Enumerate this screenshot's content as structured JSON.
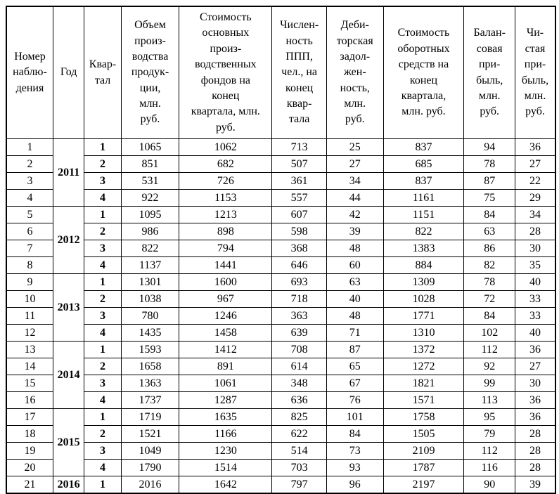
{
  "table": {
    "columns": [
      {
        "id": "obs",
        "label": "Номер\nнаблю-\nдения"
      },
      {
        "id": "year",
        "label": "Год"
      },
      {
        "id": "quarter",
        "label": "Квар-\nтал"
      },
      {
        "id": "production_volume",
        "label": "Объем\nпроиз-\nводства\nпродук-\nции,\nмлн.\nруб."
      },
      {
        "id": "fixed_assets",
        "label": "Стоимость\nосновных\nпроиз-\nводственных\nфондов на\nконец\nквартала, млн.\nруб."
      },
      {
        "id": "headcount",
        "label": "Числен-\nность\nППП,\nчел., на\nконец\nквар-\nтала"
      },
      {
        "id": "receivables",
        "label": "Деби-\nторская\nзадол-\nжен-\nность,\nмлн.\nруб."
      },
      {
        "id": "working_capital",
        "label": "Стоимость\nоборотных\nсредств на\nконец\nквартала,\nмлн. руб."
      },
      {
        "id": "book_profit",
        "label": "Балан-\nсовая\nпри-\nбыль,\nмлн.\nруб."
      },
      {
        "id": "net_profit",
        "label": "Чи-\nстая\nпри-\nбыль,\nмлн.\nруб."
      }
    ],
    "year_groups": [
      {
        "year": "2011",
        "rows": [
          {
            "obs": "1",
            "quarter": "1",
            "values": [
              "1065",
              "1062",
              "713",
              "25",
              "837",
              "94",
              "36"
            ]
          },
          {
            "obs": "2",
            "quarter": "2",
            "values": [
              "851",
              "682",
              "507",
              "27",
              "685",
              "78",
              "27"
            ]
          },
          {
            "obs": "3",
            "quarter": "3",
            "values": [
              "531",
              "726",
              "361",
              "34",
              "837",
              "87",
              "22"
            ]
          },
          {
            "obs": "4",
            "quarter": "4",
            "values": [
              "922",
              "1153",
              "557",
              "44",
              "1161",
              "75",
              "29"
            ]
          }
        ]
      },
      {
        "year": "2012",
        "rows": [
          {
            "obs": "5",
            "quarter": "1",
            "values": [
              "1095",
              "1213",
              "607",
              "42",
              "1151",
              "84",
              "34"
            ]
          },
          {
            "obs": "6",
            "quarter": "2",
            "values": [
              "986",
              "898",
              "598",
              "39",
              "822",
              "63",
              "28"
            ]
          },
          {
            "obs": "7",
            "quarter": "3",
            "values": [
              "822",
              "794",
              "368",
              "48",
              "1383",
              "86",
              "30"
            ]
          },
          {
            "obs": "8",
            "quarter": "4",
            "values": [
              "1137",
              "1441",
              "646",
              "60",
              "884",
              "82",
              "35"
            ]
          }
        ]
      },
      {
        "year": "2013",
        "rows": [
          {
            "obs": "9",
            "quarter": "1",
            "values": [
              "1301",
              "1600",
              "693",
              "63",
              "1309",
              "78",
              "40"
            ]
          },
          {
            "obs": "10",
            "quarter": "2",
            "values": [
              "1038",
              "967",
              "718",
              "40",
              "1028",
              "72",
              "33"
            ]
          },
          {
            "obs": "11",
            "quarter": "3",
            "values": [
              "780",
              "1246",
              "363",
              "48",
              "1771",
              "84",
              "33"
            ]
          },
          {
            "obs": "12",
            "quarter": "4",
            "values": [
              "1435",
              "1458",
              "639",
              "71",
              "1310",
              "102",
              "40"
            ]
          }
        ]
      },
      {
        "year": "2014",
        "rows": [
          {
            "obs": "13",
            "quarter": "1",
            "values": [
              "1593",
              "1412",
              "708",
              "87",
              "1372",
              "112",
              "36"
            ]
          },
          {
            "obs": "14",
            "quarter": "2",
            "values": [
              "1658",
              "891",
              "614",
              "65",
              "1272",
              "92",
              "27"
            ]
          },
          {
            "obs": "15",
            "quarter": "3",
            "values": [
              "1363",
              "1061",
              "348",
              "67",
              "1821",
              "99",
              "30"
            ]
          },
          {
            "obs": "16",
            "quarter": "4",
            "values": [
              "1737",
              "1287",
              "636",
              "76",
              "1571",
              "113",
              "36"
            ]
          }
        ]
      },
      {
        "year": "2015",
        "rows": [
          {
            "obs": "17",
            "quarter": "1",
            "values": [
              "1719",
              "1635",
              "825",
              "101",
              "1758",
              "95",
              "36"
            ]
          },
          {
            "obs": "18",
            "quarter": "2",
            "values": [
              "1521",
              "1166",
              "622",
              "84",
              "1505",
              "79",
              "28"
            ]
          },
          {
            "obs": "19",
            "quarter": "3",
            "values": [
              "1049",
              "1230",
              "514",
              "73",
              "2109",
              "112",
              "28"
            ]
          },
          {
            "obs": "20",
            "quarter": "4",
            "values": [
              "1790",
              "1514",
              "703",
              "93",
              "1787",
              "116",
              "28"
            ]
          }
        ]
      },
      {
        "year": "2016",
        "rows": [
          {
            "obs": "21",
            "quarter": "1",
            "values": [
              "2016",
              "1642",
              "797",
              "96",
              "2197",
              "90",
              "39"
            ]
          }
        ]
      }
    ]
  }
}
